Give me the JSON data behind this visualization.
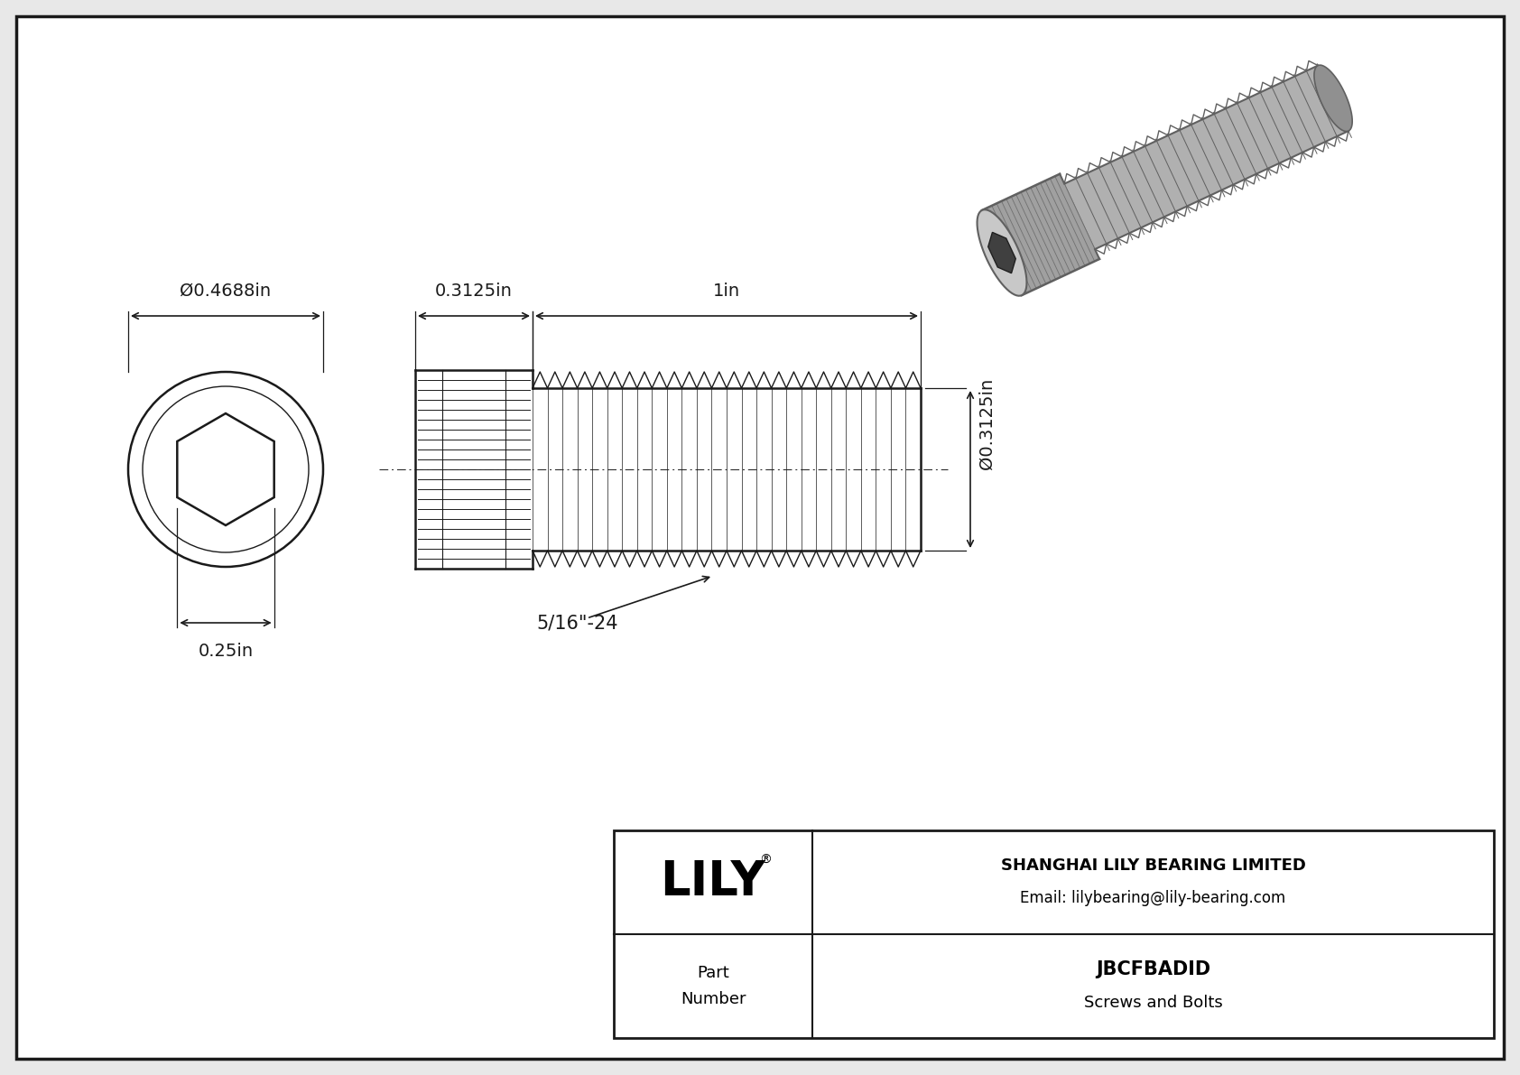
{
  "bg_color": "#e8e8e8",
  "line_color": "#1a1a1a",
  "dim_color": "#1a1a1a",
  "company_name": "SHANGHAI LILY BEARING LIMITED",
  "company_email": "Email: lilybearing@lily-bearing.com",
  "part_number": "JBCFBADID",
  "part_category": "Screws and Bolts",
  "part_label": "Part\nNumber",
  "dim_head_diameter": "Ø0.4688in",
  "dim_hex_drive": "0.25in",
  "dim_head_length": "0.3125in",
  "dim_shaft_length": "1in",
  "dim_shaft_diameter": "Ø0.3125in",
  "dim_thread_label": "5/16\"-24",
  "fig_width": 16.84,
  "fig_height": 11.91,
  "dpi": 100
}
